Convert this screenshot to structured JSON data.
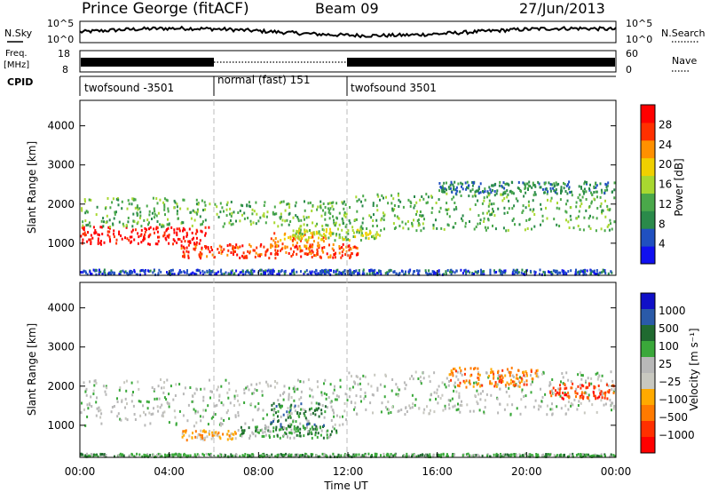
{
  "header": {
    "station": "Prince George (fitACF)",
    "beam": "Beam 09",
    "date": "27/Jun/2013"
  },
  "summary_panels": {
    "left_label_top": "N.Sky",
    "right_label_top": "N.Search",
    "yticks_top": [
      "10^5",
      "10^0"
    ],
    "left_label_freq": [
      "Freq.",
      "[MHz]"
    ],
    "freq_ticks": [
      "18",
      "8"
    ],
    "right_label_nave": "Nave",
    "nave_ticks": [
      "60",
      "0"
    ],
    "cpid_label": "CPID",
    "cpid_segments": [
      {
        "label": "twofsound -3501",
        "start_h": 0,
        "end_h": 6
      },
      {
        "label": "normal (fast) 151",
        "start_h": 6,
        "end_h": 12
      },
      {
        "label": "twofsound 3501",
        "start_h": 12,
        "end_h": 24
      }
    ]
  },
  "colors": {
    "power_scale": [
      "#1010f0",
      "#2050c0",
      "#2a8a4a",
      "#4aa84a",
      "#a8d830",
      "#f0d000",
      "#ff9000",
      "#ff3000",
      "#ff0000"
    ],
    "velocity_scale": [
      "#1010c8",
      "#2a5aa8",
      "#206a30",
      "#3aa83a",
      "#b8b8b8",
      "#c8c8c0",
      "#ffaa00",
      "#ff7a00",
      "#ff3000",
      "#ff0000"
    ]
  },
  "chart_data": [
    {
      "type": "heatmap",
      "name": "Power",
      "xlabel": "",
      "ylabel": "Slant Range [km]",
      "xlim": [
        0,
        24
      ],
      "ylim": [
        180,
        4650
      ],
      "yticks": [
        1000,
        2000,
        3000,
        4000
      ],
      "colorbar_label": "Power [dB]",
      "colorbar_ticks": [
        "4",
        "8",
        "12",
        "16",
        "20",
        "24",
        "28"
      ],
      "bands": [
        {
          "t0": 0.0,
          "t1": 5.8,
          "r0": 1000,
          "r1": 1450,
          "level": 8
        },
        {
          "t0": 0.0,
          "t1": 5.8,
          "r0": 1450,
          "r1": 2200,
          "level": 3
        },
        {
          "t0": 4.5,
          "t1": 12.5,
          "r0": 650,
          "r1": 1000,
          "level": 7
        },
        {
          "t0": 8.5,
          "t1": 11.0,
          "r0": 900,
          "r1": 1300,
          "level": 6
        },
        {
          "t0": 6.0,
          "t1": 12.0,
          "r0": 1450,
          "r1": 2100,
          "level": 3
        },
        {
          "t0": 12.0,
          "t1": 24.0,
          "r0": 1350,
          "r1": 2300,
          "level": 3
        },
        {
          "t0": 16.0,
          "t1": 24.0,
          "r0": 2300,
          "r1": 2600,
          "level": 2
        },
        {
          "t0": 9.5,
          "t1": 13.5,
          "r0": 1100,
          "r1": 1400,
          "level": 4
        },
        {
          "t0": 0.0,
          "t1": 24.0,
          "r0": 200,
          "r1": 350,
          "level": 1
        }
      ]
    },
    {
      "type": "heatmap",
      "name": "Velocity",
      "xlabel": "Time UT",
      "ylabel": "Slant Range [km]",
      "xlim": [
        0,
        24
      ],
      "ylim": [
        180,
        4650
      ],
      "yticks": [
        1000,
        2000,
        3000,
        4000
      ],
      "xticks": [
        "00:00",
        "04:00",
        "08:00",
        "12:00",
        "16:00",
        "20:00",
        "00:00"
      ],
      "colorbar_label": "Velocity [m s⁻¹]",
      "colorbar_ticks": [
        "1000",
        "500",
        "100",
        "25",
        "−25",
        "−100",
        "−500",
        "−1000"
      ],
      "bands": [
        {
          "t0": 0.0,
          "t1": 12.0,
          "r0": 1000,
          "r1": 2200,
          "level": 4
        },
        {
          "t0": 12.0,
          "t1": 24.0,
          "r0": 1300,
          "r1": 2400,
          "level": 4
        },
        {
          "t0": 7.0,
          "t1": 11.5,
          "r0": 700,
          "r1": 1000,
          "level": 3
        },
        {
          "t0": 8.5,
          "t1": 11.0,
          "r0": 1000,
          "r1": 1600,
          "level": 2
        },
        {
          "t0": 4.5,
          "t1": 7.0,
          "r0": 650,
          "r1": 900,
          "level": 6
        },
        {
          "t0": 16.5,
          "t1": 20.5,
          "r0": 2000,
          "r1": 2500,
          "level": 7
        },
        {
          "t0": 21.0,
          "t1": 24.0,
          "r0": 1700,
          "r1": 2100,
          "level": 8
        },
        {
          "t0": 0.0,
          "t1": 24.0,
          "r0": 200,
          "r1": 300,
          "level": 3
        }
      ]
    }
  ]
}
